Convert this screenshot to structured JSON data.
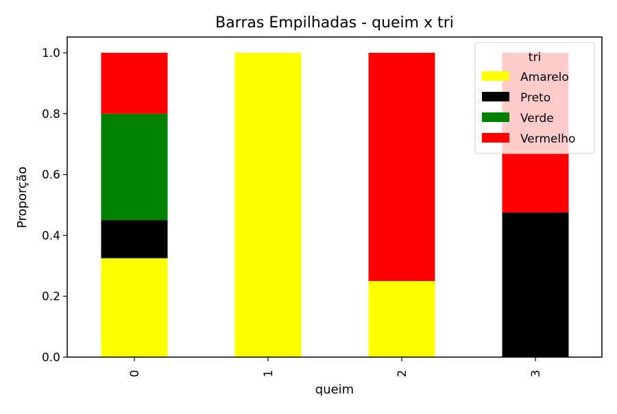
{
  "chart_data": {
    "type": "bar",
    "stacked": true,
    "title": "Barras Empilhadas - queim x tri",
    "xlabel": "queim",
    "ylabel": "Proporção",
    "categories": [
      "0",
      "1",
      "2",
      "3"
    ],
    "ylim": [
      0,
      1.0
    ],
    "yticks": [
      "0.0",
      "0.2",
      "0.4",
      "0.6",
      "0.8",
      "1.0"
    ],
    "grid": false,
    "legend": {
      "title": "tri",
      "placement": "top-right"
    },
    "series": [
      {
        "name": "Amarelo",
        "color": "#ffff00",
        "values": [
          0.325,
          1.0,
          0.25,
          0.0
        ]
      },
      {
        "name": "Preto",
        "color": "#000000",
        "values": [
          0.125,
          0.0,
          0.0,
          0.475
        ]
      },
      {
        "name": "Verde",
        "color": "#008000",
        "values": [
          0.35,
          0.0,
          0.0,
          0.0
        ]
      },
      {
        "name": "Vermelho",
        "color": "#ff0000",
        "values": [
          0.2,
          0.0,
          0.75,
          0.525
        ]
      }
    ]
  }
}
